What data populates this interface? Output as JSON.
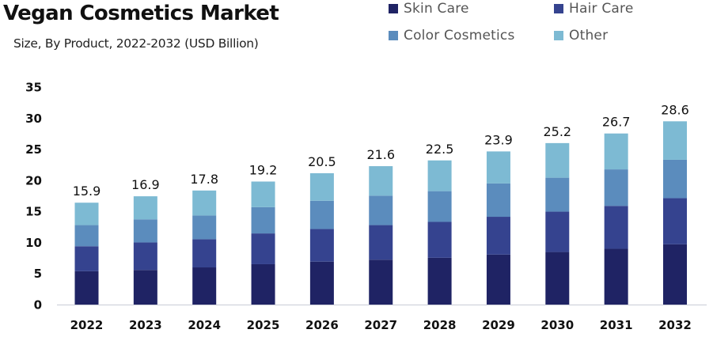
{
  "chart_data": {
    "type": "bar",
    "stacked": true,
    "title": "Vegan Cosmetics Market",
    "subtitle": "Size, By Product, 2022-2032 (USD Billion)",
    "xlabel": "",
    "ylabel": "",
    "ylim": [
      0,
      35
    ],
    "yticks": [
      0,
      5,
      10,
      15,
      20,
      25,
      30,
      35
    ],
    "grid": false,
    "legend_position": "top-right",
    "categories": [
      "2022",
      "2023",
      "2024",
      "2025",
      "2026",
      "2027",
      "2028",
      "2029",
      "2030",
      "2031",
      "2032"
    ],
    "totals": [
      15.9,
      16.9,
      17.8,
      19.2,
      20.5,
      21.6,
      22.5,
      23.9,
      25.2,
      26.7,
      28.6
    ],
    "total_labels": [
      "15.9",
      "16.9",
      "17.8",
      "19.2",
      "20.5",
      "21.6",
      "22.5",
      "23.9",
      "25.2",
      "26.7",
      "28.6"
    ],
    "series": [
      {
        "name": "Skin Care",
        "color": "#1f2364",
        "values": [
          5.2,
          5.4,
          5.8,
          6.3,
          6.7,
          7.0,
          7.3,
          7.8,
          8.2,
          8.7,
          9.4
        ]
      },
      {
        "name": "Hair Care",
        "color": "#35438f",
        "values": [
          3.9,
          4.3,
          4.4,
          4.8,
          5.1,
          5.4,
          5.6,
          5.9,
          6.3,
          6.7,
          7.2
        ]
      },
      {
        "name": "Color Cosmetics",
        "color": "#5b8cbd",
        "values": [
          3.3,
          3.6,
          3.7,
          4.1,
          4.4,
          4.6,
          4.8,
          5.2,
          5.3,
          5.7,
          6.0
        ]
      },
      {
        "name": "Other",
        "color": "#7dbad3",
        "values": [
          3.5,
          3.6,
          3.9,
          4.0,
          4.3,
          4.6,
          4.8,
          5.0,
          5.4,
          5.6,
          6.0
        ]
      }
    ]
  }
}
